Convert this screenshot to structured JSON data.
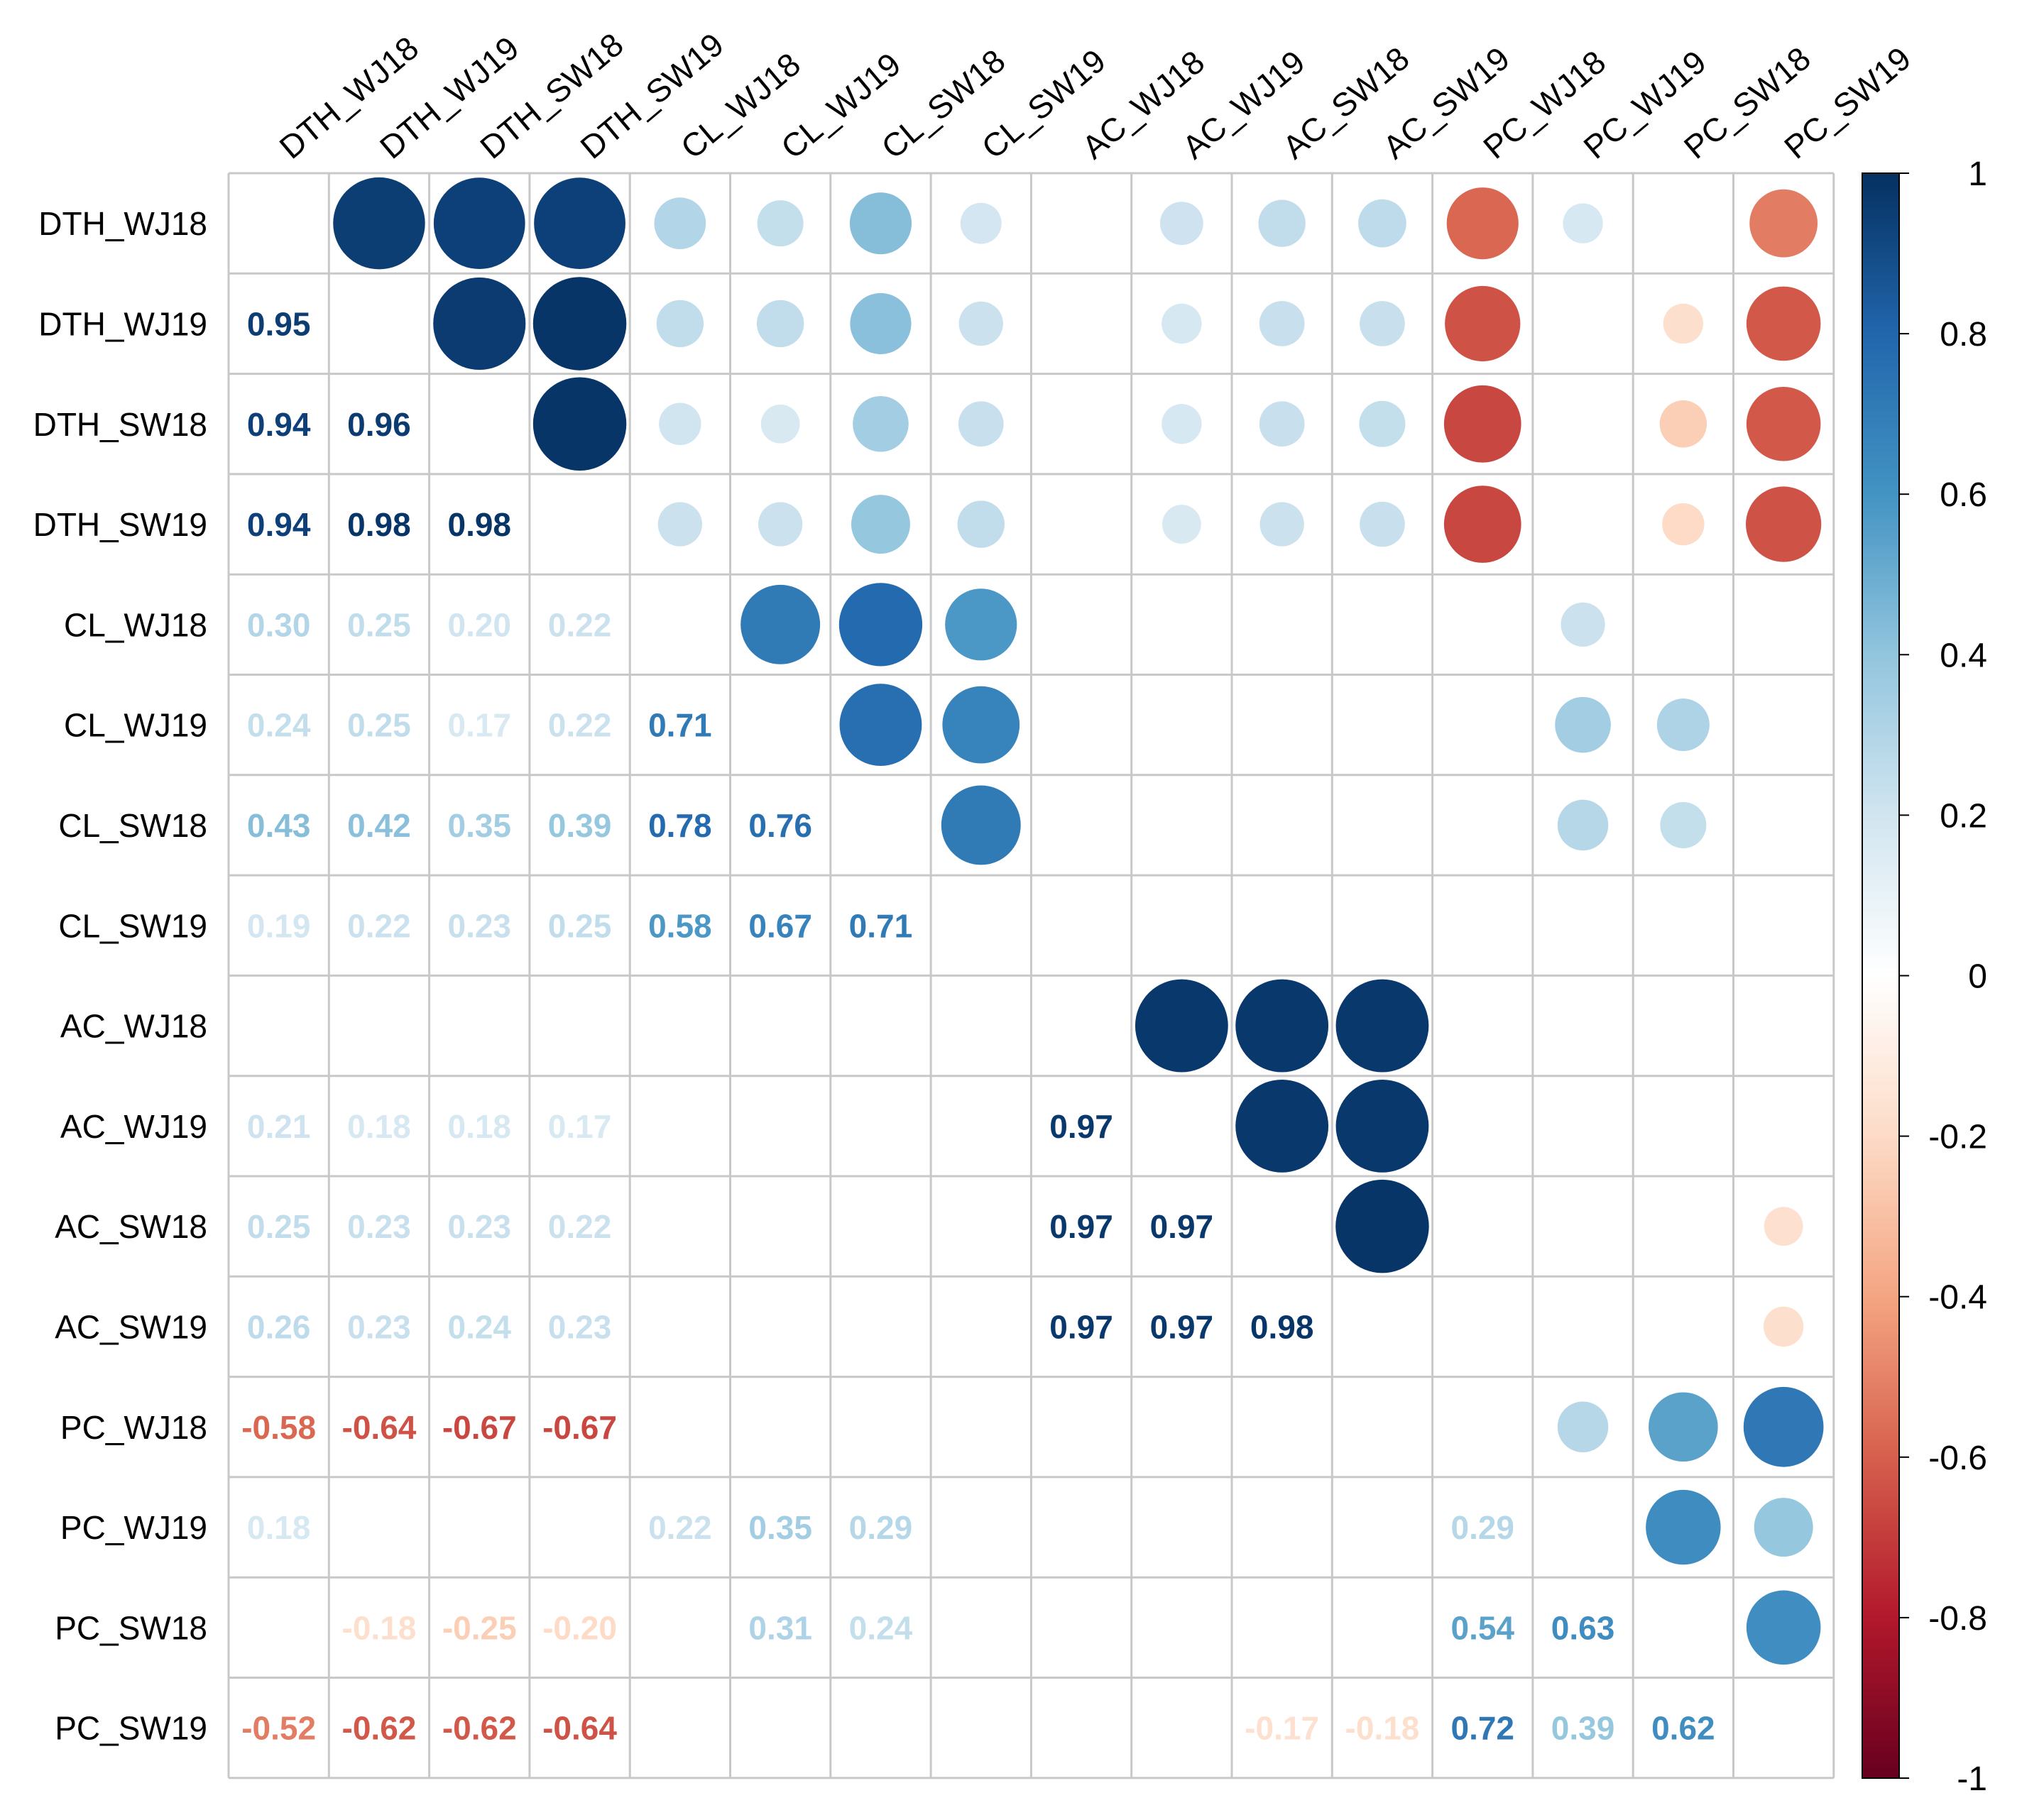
{
  "chart_data": {
    "type": "heatmap",
    "subtype": "correlation-matrix-mixed",
    "title": "",
    "layout": {
      "upper": "circle",
      "lower": "number",
      "diagonal": "blank"
    },
    "variables": [
      "DTH_WJ18",
      "DTH_WJ19",
      "DTH_SW18",
      "DTH_SW19",
      "CL_WJ18",
      "CL_WJ19",
      "CL_SW18",
      "CL_SW19",
      "AC_WJ18",
      "AC_WJ19",
      "AC_SW18",
      "AC_SW19",
      "PC_WJ18",
      "PC_WJ19",
      "PC_SW18",
      "PC_SW19"
    ],
    "lower_values": [
      [
        null,
        null,
        null,
        null,
        null,
        null,
        null,
        null,
        null,
        null,
        null,
        null,
        null,
        null,
        null,
        null
      ],
      [
        0.95,
        null,
        null,
        null,
        null,
        null,
        null,
        null,
        null,
        null,
        null,
        null,
        null,
        null,
        null,
        null
      ],
      [
        0.94,
        0.96,
        null,
        null,
        null,
        null,
        null,
        null,
        null,
        null,
        null,
        null,
        null,
        null,
        null,
        null
      ],
      [
        0.94,
        0.98,
        0.98,
        null,
        null,
        null,
        null,
        null,
        null,
        null,
        null,
        null,
        null,
        null,
        null,
        null
      ],
      [
        0.3,
        0.25,
        0.2,
        0.22,
        null,
        null,
        null,
        null,
        null,
        null,
        null,
        null,
        null,
        null,
        null,
        null
      ],
      [
        0.24,
        0.25,
        0.17,
        0.22,
        0.71,
        null,
        null,
        null,
        null,
        null,
        null,
        null,
        null,
        null,
        null,
        null
      ],
      [
        0.43,
        0.42,
        0.35,
        0.39,
        0.78,
        0.76,
        null,
        null,
        null,
        null,
        null,
        null,
        null,
        null,
        null,
        null
      ],
      [
        0.19,
        0.22,
        0.23,
        0.25,
        0.58,
        0.67,
        0.71,
        null,
        null,
        null,
        null,
        null,
        null,
        null,
        null,
        null
      ],
      [
        null,
        null,
        null,
        null,
        null,
        null,
        null,
        null,
        null,
        null,
        null,
        null,
        null,
        null,
        null,
        null
      ],
      [
        0.21,
        0.18,
        0.18,
        0.17,
        null,
        null,
        null,
        null,
        0.97,
        null,
        null,
        null,
        null,
        null,
        null,
        null
      ],
      [
        0.25,
        0.23,
        0.23,
        0.22,
        null,
        null,
        null,
        null,
        0.97,
        0.97,
        null,
        null,
        null,
        null,
        null,
        null
      ],
      [
        0.26,
        0.23,
        0.24,
        0.23,
        null,
        null,
        null,
        null,
        0.97,
        0.97,
        0.98,
        null,
        null,
        null,
        null,
        null
      ],
      [
        -0.58,
        -0.64,
        -0.67,
        -0.67,
        null,
        null,
        null,
        null,
        null,
        null,
        null,
        null,
        null,
        null,
        null,
        null
      ],
      [
        0.18,
        null,
        null,
        null,
        0.22,
        0.35,
        0.29,
        null,
        null,
        null,
        null,
        null,
        0.29,
        null,
        null,
        null
      ],
      [
        null,
        -0.18,
        -0.25,
        -0.2,
        null,
        0.31,
        0.24,
        null,
        null,
        null,
        null,
        null,
        0.54,
        0.63,
        null,
        null
      ],
      [
        -0.52,
        -0.62,
        -0.62,
        -0.64,
        null,
        null,
        null,
        null,
        null,
        null,
        -0.17,
        -0.18,
        0.72,
        0.39,
        0.62,
        null
      ]
    ],
    "upper_values": [
      [
        null,
        0.95,
        0.94,
        0.94,
        0.3,
        0.24,
        0.43,
        0.19,
        null,
        0.21,
        0.25,
        0.26,
        -0.58,
        0.18,
        null,
        -0.52
      ],
      [
        null,
        null,
        0.96,
        0.98,
        0.25,
        0.25,
        0.42,
        0.22,
        null,
        0.18,
        0.23,
        0.23,
        -0.64,
        null,
        -0.18,
        -0.62
      ],
      [
        null,
        null,
        null,
        0.98,
        0.2,
        0.17,
        0.35,
        0.23,
        null,
        0.18,
        0.23,
        0.24,
        -0.67,
        null,
        -0.25,
        -0.62
      ],
      [
        null,
        null,
        null,
        null,
        0.22,
        0.22,
        0.39,
        0.25,
        null,
        0.17,
        0.22,
        0.23,
        -0.67,
        null,
        -0.2,
        -0.64
      ],
      [
        null,
        null,
        null,
        null,
        null,
        0.71,
        0.78,
        0.58,
        null,
        null,
        null,
        null,
        null,
        0.22,
        null,
        null
      ],
      [
        null,
        null,
        null,
        null,
        null,
        null,
        0.76,
        0.67,
        null,
        null,
        null,
        null,
        null,
        0.35,
        0.31,
        null
      ],
      [
        null,
        null,
        null,
        null,
        null,
        null,
        null,
        0.71,
        null,
        null,
        null,
        null,
        null,
        0.29,
        0.24,
        null
      ],
      [
        null,
        null,
        null,
        null,
        null,
        null,
        null,
        null,
        null,
        null,
        null,
        null,
        null,
        null,
        null,
        null
      ],
      [
        null,
        null,
        null,
        null,
        null,
        null,
        null,
        null,
        null,
        0.97,
        0.97,
        0.97,
        null,
        null,
        null,
        null
      ],
      [
        null,
        null,
        null,
        null,
        null,
        null,
        null,
        null,
        null,
        null,
        0.97,
        0.97,
        null,
        null,
        null,
        null
      ],
      [
        null,
        null,
        null,
        null,
        null,
        null,
        null,
        null,
        null,
        null,
        null,
        0.98,
        null,
        null,
        null,
        -0.17
      ],
      [
        null,
        null,
        null,
        null,
        null,
        null,
        null,
        null,
        null,
        null,
        null,
        null,
        null,
        null,
        null,
        -0.18
      ],
      [
        null,
        null,
        null,
        null,
        null,
        null,
        null,
        null,
        null,
        null,
        null,
        null,
        null,
        0.29,
        0.54,
        0.72
      ],
      [
        null,
        null,
        null,
        null,
        null,
        null,
        null,
        null,
        null,
        null,
        null,
        null,
        null,
        null,
        0.63,
        0.39
      ],
      [
        null,
        null,
        null,
        null,
        null,
        null,
        null,
        null,
        null,
        null,
        null,
        null,
        null,
        null,
        null,
        0.62
      ],
      [
        null,
        null,
        null,
        null,
        null,
        null,
        null,
        null,
        null,
        null,
        null,
        null,
        null,
        null,
        null,
        null
      ]
    ],
    "colorbar": {
      "range": [
        -1,
        1
      ],
      "tick_values": [
        1,
        0.8,
        0.6,
        0.4,
        0.2,
        0,
        -0.2,
        -0.4,
        -0.6,
        -0.8,
        -1
      ],
      "tick_labels": [
        "1",
        "0.8",
        "0.6",
        "0.4",
        "0.2",
        "0",
        "-0.2",
        "-0.4",
        "-0.6",
        "-0.8",
        "-1"
      ],
      "colors": [
        "#67001F",
        "#B2182B",
        "#D6604D",
        "#F4A582",
        "#FDDBC7",
        "#FFFFFF",
        "#D1E5F0",
        "#92C5DE",
        "#4393C3",
        "#2166AC",
        "#053061"
      ]
    },
    "grid": true,
    "legend": "right"
  }
}
